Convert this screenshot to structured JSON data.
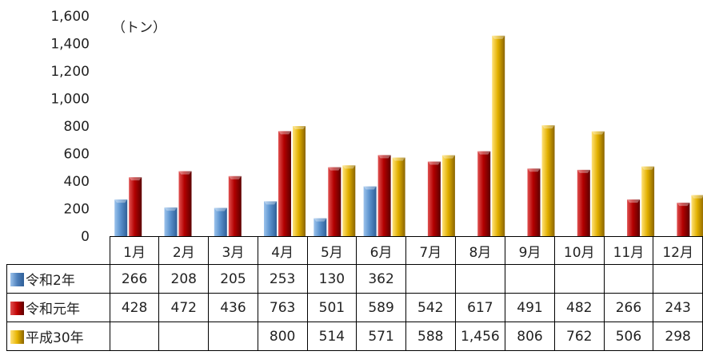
{
  "chart_data": {
    "type": "bar",
    "unit_label": "（トン）",
    "ylim": [
      0,
      1600
    ],
    "yticks": [
      "0",
      "200",
      "400",
      "600",
      "800",
      "1,000",
      "1,200",
      "1,400",
      "1,600"
    ],
    "categories": [
      "1月",
      "2月",
      "3月",
      "4月",
      "5月",
      "6月",
      "7月",
      "8月",
      "9月",
      "10月",
      "11月",
      "12月"
    ],
    "series": [
      {
        "name": "令和2年",
        "color": "#4f81bd",
        "values": [
          266,
          208,
          205,
          253,
          130,
          362,
          null,
          null,
          null,
          null,
          null,
          null
        ],
        "labels": [
          "266",
          "208",
          "205",
          "253",
          "130",
          "362",
          "",
          "",
          "",
          "",
          "",
          ""
        ]
      },
      {
        "name": "令和元年",
        "color": "#c00000",
        "values": [
          428,
          472,
          436,
          763,
          501,
          589,
          542,
          617,
          491,
          482,
          266,
          243
        ],
        "labels": [
          "428",
          "472",
          "436",
          "763",
          "501",
          "589",
          "542",
          "617",
          "491",
          "482",
          "266",
          "243"
        ]
      },
      {
        "name": "平成30年",
        "color": "#e6b400",
        "values": [
          null,
          null,
          null,
          800,
          514,
          571,
          588,
          1456,
          806,
          762,
          506,
          298
        ],
        "labels": [
          "",
          "",
          "",
          "800",
          "514",
          "571",
          "588",
          "1,456",
          "806",
          "762",
          "506",
          "298"
        ]
      }
    ]
  }
}
